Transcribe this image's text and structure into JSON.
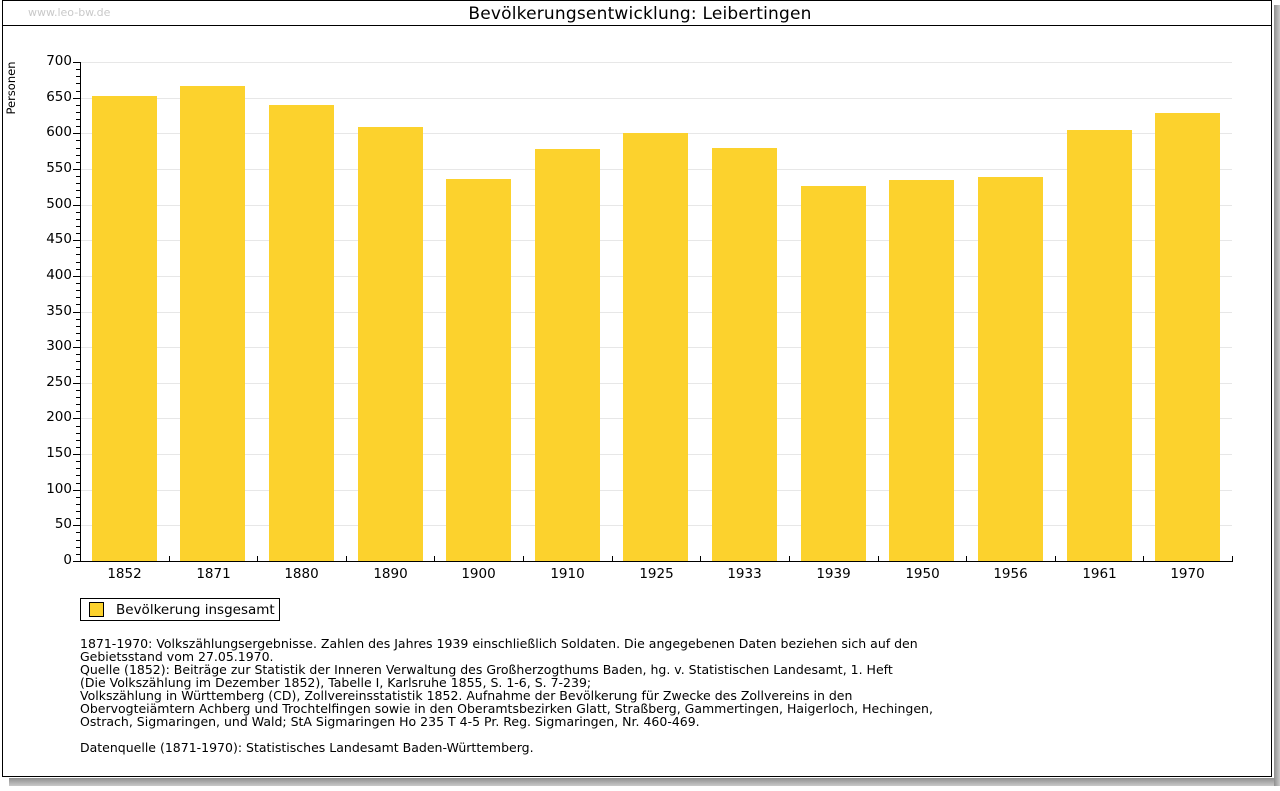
{
  "watermark": "www.leo-bw.de",
  "header": {
    "title": "Bevölkerungsentwicklung: Leibertingen"
  },
  "colors": {
    "bar": "#fcd22d",
    "grid": "#e7e7e7",
    "axis": "#000000",
    "watermark": "#c9c9c9"
  },
  "chart_data": {
    "type": "bar",
    "title": "Bevölkerungsentwicklung: Leibertingen",
    "categories": [
      "1852",
      "1871",
      "1880",
      "1890",
      "1900",
      "1910",
      "1925",
      "1933",
      "1939",
      "1950",
      "1956",
      "1961",
      "1970"
    ],
    "values": [
      653,
      666,
      639,
      609,
      536,
      578,
      600,
      580,
      526,
      534,
      538,
      605,
      628
    ],
    "xlabel": "",
    "ylabel": "Personen",
    "ylim": [
      0,
      700
    ],
    "ytick_step": 50,
    "ytick_minor_step": 10,
    "grid": true,
    "legend_entries": [
      "Bevölkerung insgesamt"
    ],
    "legend_position": "bottom-left",
    "bar_color": "#fcd22d"
  },
  "legend": {
    "label": "Bevölkerung insgesamt"
  },
  "footnotes": [
    "1871-1970: Volkszählungsergebnisse. Zahlen des Jahres 1939 einschließlich Soldaten. Die angegebenen Daten beziehen sich auf den",
    "Gebietsstand vom 27.05.1970.",
    "Quelle (1852): Beiträge zur Statistik der Inneren Verwaltung des Großherzogthums Baden, hg. v. Statistischen Landesamt, 1. Heft",
    "(Die Volkszählung im Dezember 1852), Tabelle I, Karlsruhe 1855, S. 1-6, S. 7-239;",
    "Volkszählung in Württemberg (CD), Zollvereinsstatistik 1852. Aufnahme der Bevölkerung für Zwecke des Zollvereins in den",
    "Obervogteiämtern Achberg und Trochtelfingen sowie in den Oberamtsbezirken Glatt, Straßberg, Gammertingen, Haigerloch, Hechingen,",
    "Ostrach, Sigmaringen, und Wald; StA Sigmaringen Ho 235 T 4-5 Pr. Reg. Sigmaringen, Nr. 460-469."
  ],
  "source_line": "Datenquelle (1871-1970): Statistisches Landesamt Baden-Württemberg."
}
